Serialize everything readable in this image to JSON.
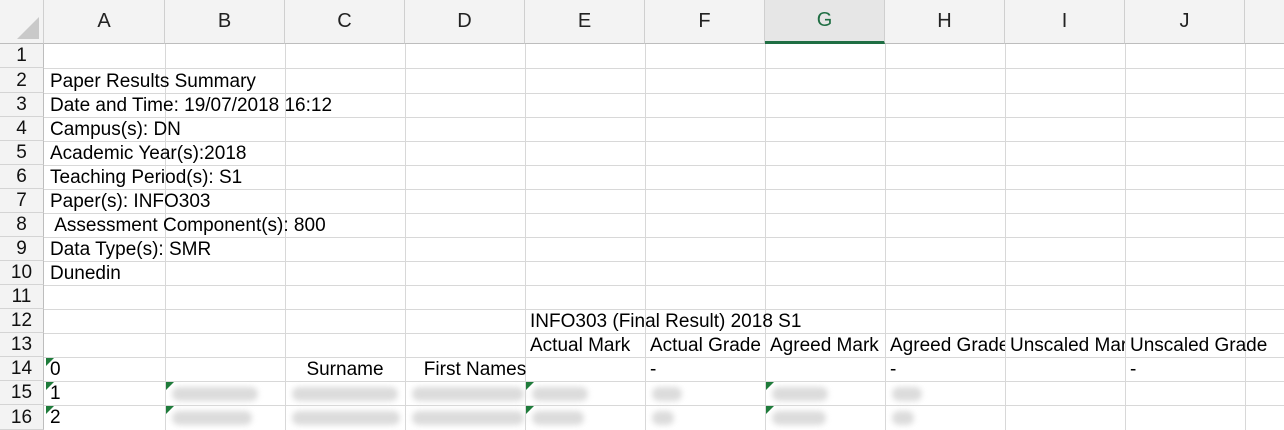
{
  "columns": [
    "A",
    "B",
    "C",
    "D",
    "E",
    "F",
    "G",
    "H",
    "I",
    "J"
  ],
  "selected_column": "G",
  "rows": [
    "1",
    "2",
    "3",
    "4",
    "5",
    "6",
    "7",
    "8",
    "9",
    "10",
    "11",
    "12",
    "13",
    "14",
    "15",
    "16"
  ],
  "cells": {
    "A2": "Paper Results Summary",
    "A3": "Date and Time: 19/07/2018 16:12",
    "A4": "Campus(s): DN",
    "A5": "Academic Year(s):2018",
    "A6": "Teaching Period(s): S1",
    "A7": "Paper(s): INFO303",
    "A8": " Assessment Component(s): 800",
    "A9": "Data Type(s): SMR",
    "A10": "Dunedin",
    "E12": "INFO303 (Final Result) 2018 S1",
    "E13": "Actual Mark",
    "F13": "Actual Grade",
    "G13": "Agreed Mark",
    "H13": "Agreed Grade",
    "I13": "Unscaled Mark",
    "J13": "Unscaled Grade",
    "A14": "0",
    "C14": "Surname",
    "D14": "First Names",
    "F14": "-",
    "H14": "-",
    "J14": "-",
    "A15": "1",
    "A16": "2"
  },
  "colors": {
    "selected_header": "#1f6e43",
    "error_flag": "#1e7b3a",
    "grid": "#d8d8d8"
  }
}
